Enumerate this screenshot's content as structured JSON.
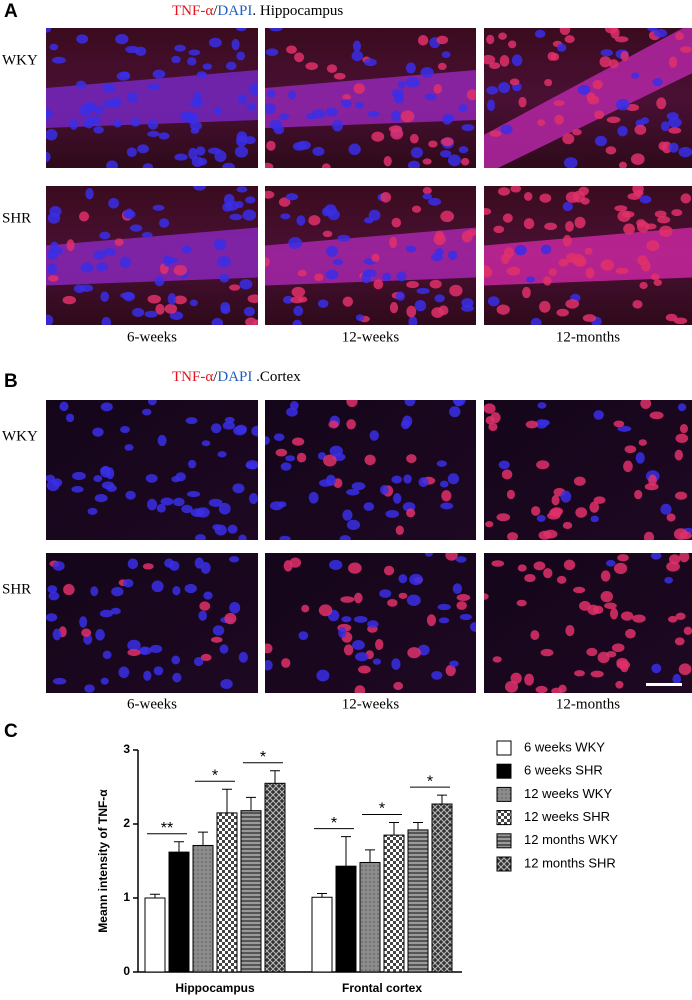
{
  "panel_a": {
    "letter": "A",
    "title_parts": [
      "TNF-α",
      "/",
      "DAPI",
      ". Hippocampus"
    ],
    "rows": [
      "WKY",
      "SHR"
    ],
    "columns": [
      "6-weeks",
      "12-weeks",
      "12-months"
    ]
  },
  "panel_b": {
    "letter": "B",
    "title_parts": [
      "TNF-α",
      "/",
      "DAPI",
      " .Cortex"
    ],
    "rows": [
      "WKY",
      "SHR"
    ],
    "columns": [
      "6-weeks",
      "12-weeks",
      "12-months"
    ]
  },
  "chart_data": {
    "type": "bar",
    "letter": "C",
    "y_label": "Meann intensity of TNF-α",
    "categories": [
      "Hippocampus",
      "Frontal cortex"
    ],
    "ylim": [
      0,
      3
    ],
    "yticks": [
      0,
      1,
      2,
      3
    ],
    "series": [
      {
        "name": "6 weeks WKY",
        "color": "#ffffff",
        "values": [
          1.0,
          1.01
        ],
        "errors": [
          0.05,
          0.05
        ]
      },
      {
        "name": "6 weeks SHR",
        "color": "#000000",
        "values": [
          1.62,
          1.43
        ],
        "errors": [
          0.14,
          0.4
        ]
      },
      {
        "name": "12 weeks WKY",
        "color": "#808080",
        "values": [
          1.71,
          1.48
        ],
        "errors": [
          0.18,
          0.17
        ]
      },
      {
        "name": "12 weeks SHR",
        "color": "#9a9a9a",
        "values": [
          2.15,
          1.85
        ],
        "errors": [
          0.32,
          0.17
        ]
      },
      {
        "name": "12 months WKY",
        "color": "#707070",
        "values": [
          2.18,
          1.92
        ],
        "errors": [
          0.18,
          0.1
        ]
      },
      {
        "name": "12 months SHR",
        "color": "#404040",
        "values": [
          2.55,
          2.27
        ],
        "errors": [
          0.17,
          0.12
        ]
      }
    ],
    "significance": [
      [
        "**",
        "*",
        "*"
      ],
      [
        "*",
        "*",
        "*"
      ]
    ]
  }
}
